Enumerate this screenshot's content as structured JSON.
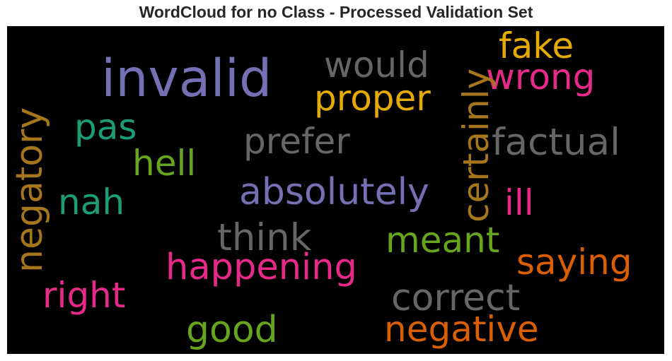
{
  "title": "WordCloud for no Class - Processed Validation Set",
  "chart_data": {
    "type": "wordcloud",
    "title": "WordCloud for no Class - Processed Validation Set",
    "background": "#000000",
    "words": [
      {
        "key": "invalid",
        "text": "invalid",
        "color": "#7570b3",
        "orientation": "horizontal"
      },
      {
        "key": "would",
        "text": "would",
        "color": "#666666",
        "orientation": "horizontal"
      },
      {
        "key": "fake",
        "text": "fake",
        "color": "#e6ab02",
        "orientation": "horizontal"
      },
      {
        "key": "wrong",
        "text": "wrong",
        "color": "#e7298a",
        "orientation": "horizontal"
      },
      {
        "key": "proper",
        "text": "proper",
        "color": "#e6ab02",
        "orientation": "horizontal"
      },
      {
        "key": "certainly",
        "text": "certainly",
        "color": "#a6761d",
        "orientation": "vertical"
      },
      {
        "key": "negatory",
        "text": "negatory",
        "color": "#a6761d",
        "orientation": "vertical"
      },
      {
        "key": "pas",
        "text": "pas",
        "color": "#1b9e77",
        "orientation": "horizontal"
      },
      {
        "key": "prefer",
        "text": "prefer",
        "color": "#666666",
        "orientation": "horizontal"
      },
      {
        "key": "factual",
        "text": "factual",
        "color": "#666666",
        "orientation": "horizontal"
      },
      {
        "key": "hell",
        "text": "hell",
        "color": "#66a61e",
        "orientation": "horizontal"
      },
      {
        "key": "absolutely",
        "text": "absolutely",
        "color": "#7570b3",
        "orientation": "horizontal"
      },
      {
        "key": "nah",
        "text": "nah",
        "color": "#1b9e77",
        "orientation": "horizontal"
      },
      {
        "key": "ill",
        "text": "ill",
        "color": "#e7298a",
        "orientation": "horizontal"
      },
      {
        "key": "think",
        "text": "think",
        "color": "#666666",
        "orientation": "horizontal"
      },
      {
        "key": "meant",
        "text": "meant",
        "color": "#66a61e",
        "orientation": "horizontal"
      },
      {
        "key": "happening",
        "text": "happening",
        "color": "#e7298a",
        "orientation": "horizontal"
      },
      {
        "key": "saying",
        "text": "saying",
        "color": "#d95f02",
        "orientation": "horizontal"
      },
      {
        "key": "right",
        "text": "right",
        "color": "#e7298a",
        "orientation": "horizontal"
      },
      {
        "key": "correct",
        "text": "correct",
        "color": "#666666",
        "orientation": "horizontal"
      },
      {
        "key": "good",
        "text": "good",
        "color": "#66a61e",
        "orientation": "horizontal"
      },
      {
        "key": "negative",
        "text": "negative",
        "color": "#d95f02",
        "orientation": "horizontal"
      }
    ]
  }
}
